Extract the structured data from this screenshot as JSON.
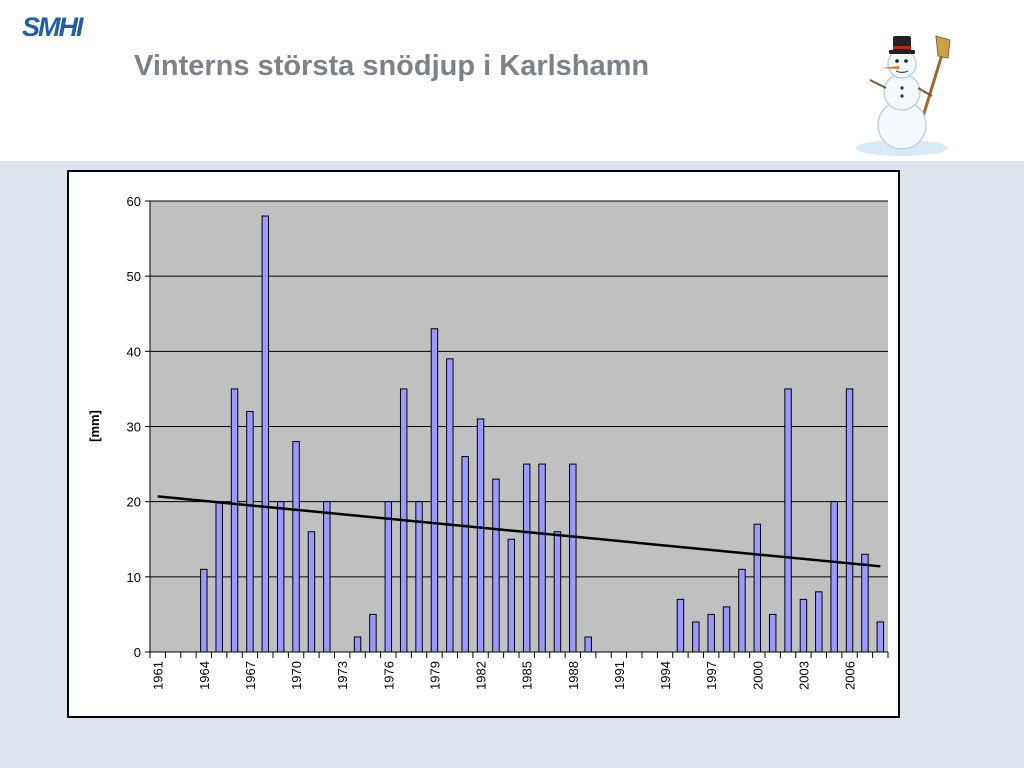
{
  "header": {
    "logo_text": "SMHI",
    "title": "Vinterns största snödjup i Karlshamn"
  },
  "colors": {
    "title": "#7b8288",
    "logo": "#1f5fa6",
    "bar_fill": "#9999ff",
    "plot_bg": "#c0c0c0",
    "band_bg": "#dde5ee",
    "trend": "#000000"
  },
  "chart_data": {
    "type": "bar",
    "ylabel": "[mm]",
    "ylim": [
      0,
      60
    ],
    "yticks": [
      0,
      10,
      20,
      30,
      40,
      50,
      60
    ],
    "grid": true,
    "x_tick_labels": [
      "1961",
      "1964",
      "1967",
      "1970",
      "1973",
      "1976",
      "1979",
      "1982",
      "1985",
      "1988",
      "1991",
      "1994",
      "1997",
      "2000",
      "2003",
      "2006"
    ],
    "categories": [
      1961,
      1962,
      1963,
      1964,
      1965,
      1966,
      1967,
      1968,
      1969,
      1970,
      1971,
      1972,
      1973,
      1974,
      1975,
      1976,
      1977,
      1978,
      1979,
      1980,
      1981,
      1982,
      1983,
      1984,
      1985,
      1986,
      1987,
      1988,
      1989,
      1990,
      1991,
      1992,
      1993,
      1994,
      1995,
      1996,
      1997,
      1998,
      1999,
      2000,
      2001,
      2002,
      2003,
      2004,
      2005,
      2006,
      2007,
      2008
    ],
    "values": [
      0,
      0,
      0,
      11,
      20,
      35,
      32,
      58,
      20,
      28,
      16,
      20,
      0,
      2,
      5,
      20,
      35,
      20,
      43,
      39,
      26,
      31,
      23,
      15,
      25,
      25,
      16,
      25,
      2,
      0,
      0,
      0,
      0,
      0,
      7,
      4,
      5,
      6,
      11,
      17,
      5,
      35,
      7,
      8,
      20,
      35,
      13,
      4
    ],
    "trend_line": {
      "x": [
        1961,
        2008
      ],
      "y": [
        20.7,
        11.4
      ]
    }
  }
}
